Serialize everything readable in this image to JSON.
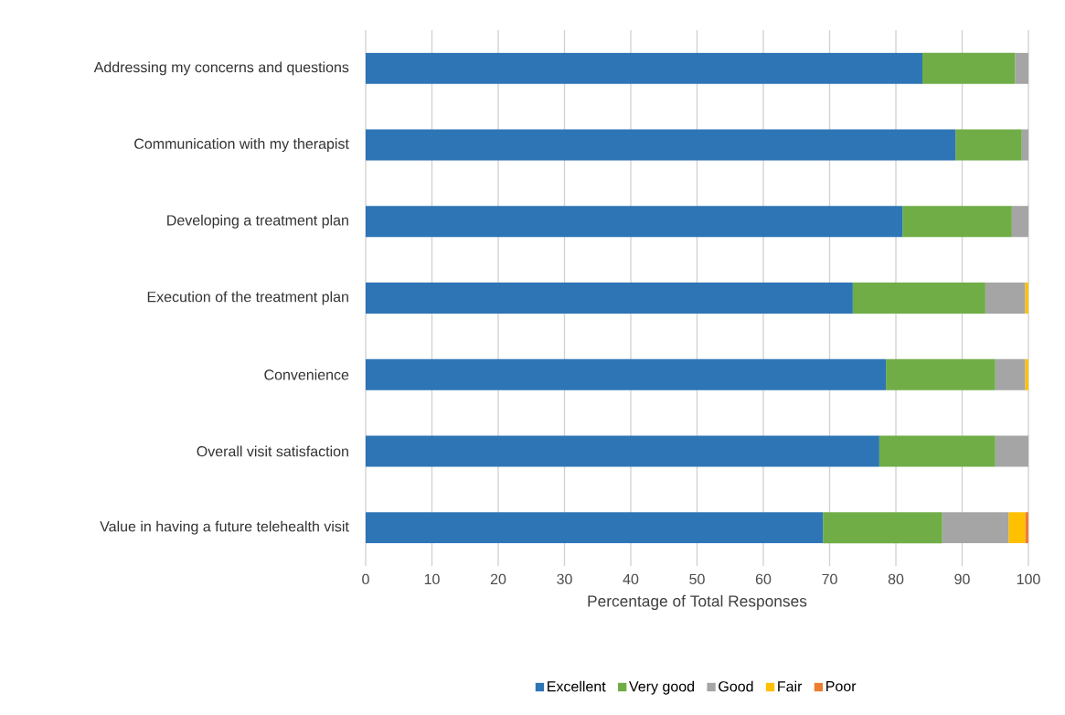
{
  "chart_data": {
    "type": "bar",
    "orientation": "horizontal",
    "stacked": true,
    "categories": [
      "Addressing my concerns and questions",
      "Communication with my therapist",
      "Developing a treatment plan",
      "Execution of the treatment plan",
      "Convenience",
      "Overall visit satisfaction",
      "Value in having a future telehealth visit"
    ],
    "series": [
      {
        "name": "Excellent",
        "color": "#2e75b6",
        "values": [
          84,
          89,
          81,
          73.5,
          78.5,
          77.5,
          69
        ]
      },
      {
        "name": "Very good",
        "color": "#70ad47",
        "values": [
          14,
          10,
          16.5,
          20,
          16.5,
          17.5,
          18
        ]
      },
      {
        "name": "Good",
        "color": "#a5a5a5",
        "values": [
          2,
          1,
          2.5,
          6,
          4.5,
          5,
          10
        ]
      },
      {
        "name": "Fair",
        "color": "#ffc000",
        "values": [
          null,
          null,
          null,
          0.5,
          0.5,
          null,
          2.5
        ]
      },
      {
        "name": "Poor",
        "color": "#ed7d31",
        "values": [
          null,
          null,
          null,
          null,
          null,
          null,
          0.5
        ]
      }
    ],
    "xlabel": "Percentage of Total Responses",
    "xlim": [
      0,
      100
    ],
    "xticks": [
      0,
      10,
      20,
      30,
      40,
      50,
      60,
      70,
      80,
      90,
      100
    ],
    "grid": "x",
    "legend": "bottom"
  }
}
